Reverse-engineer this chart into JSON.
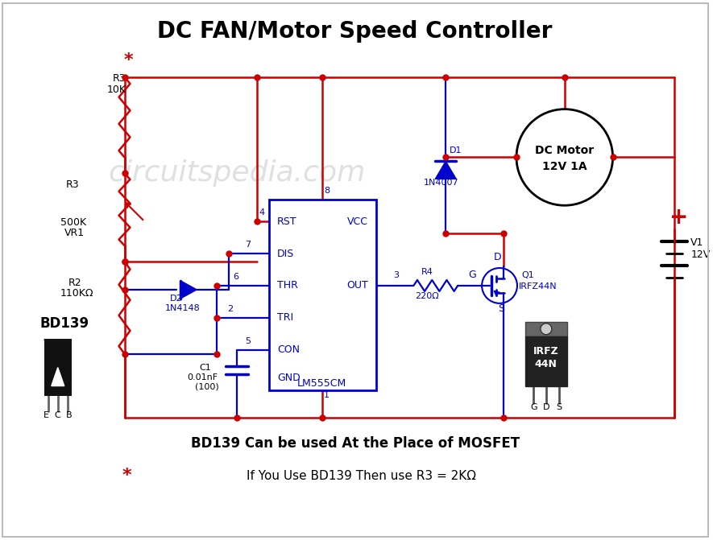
{
  "title": "DC FAN/Motor Speed Controller",
  "watermark": "circuitspedia.com",
  "bg_color": "#ffffff",
  "wire_color": "#cc0000",
  "component_color": "#0000cc",
  "text_color": "#000000",
  "bottom_text1": "BD139 Can be used At the Place of MOSFET",
  "bottom_text2": "If You Use BD139 Then use R3 = 2KΩ",
  "star_color": "#cc0000",
  "plus_color": "#cc0000",
  "border_color": "#bbbbbb",
  "pkg_body_color": "#666666",
  "pkg_hole_color": "#cccccc"
}
